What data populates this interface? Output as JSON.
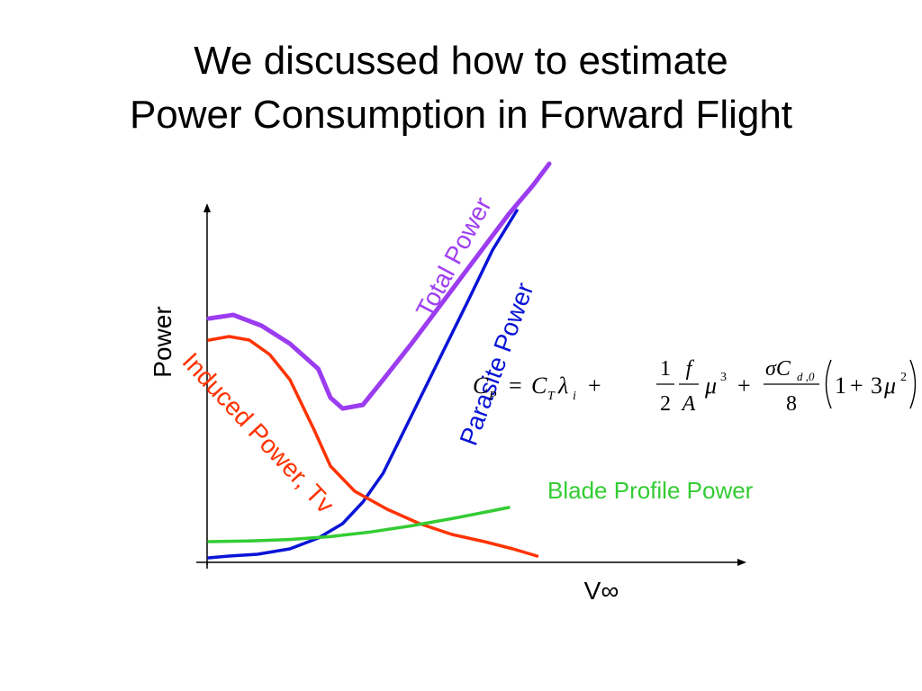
{
  "slide": {
    "title_line1": "We discussed how to estimate",
    "title_line2": "Power Consumption in Forward Flight"
  },
  "equation": {
    "lhs": "C",
    "lhs_sub": "P",
    "t1": "C",
    "t1_sub": "T",
    "lambda": "λ",
    "lambda_sub": "i",
    "frac1_num": "1",
    "frac1_den": "2",
    "frac2_num": "f",
    "frac2_den": "A",
    "mu": "μ",
    "mu_exp": "3",
    "frac3_num_sigma": "σC",
    "frac3_num_sub": "d ,0",
    "frac3_den": "8",
    "paren_one": "1",
    "paren_three": "3",
    "paren_mu": "μ",
    "paren_exp": "2",
    "eq_sign": "=",
    "plus": "+"
  },
  "chart_data": {
    "type": "line",
    "xlabel": "V∞",
    "ylabel": "Power",
    "grid": false,
    "legend": "none",
    "note": "qualitative sketch, no numeric ticks",
    "series": [
      {
        "name": "Total Power",
        "color": "#9b3cf0",
        "x": [
          0,
          0.06,
          0.13,
          0.2,
          0.27,
          0.3,
          0.33,
          0.38,
          0.43,
          0.5,
          0.58,
          0.66,
          0.74,
          0.8,
          0.84
        ],
        "y": [
          0.67,
          0.68,
          0.65,
          0.6,
          0.53,
          0.45,
          0.42,
          0.43,
          0.5,
          0.6,
          0.72,
          0.84,
          0.96,
          1.04,
          1.1
        ]
      },
      {
        "name": "Parasite Power",
        "color": "#0a14d6",
        "x": [
          0,
          0.05,
          0.12,
          0.2,
          0.27,
          0.33,
          0.38,
          0.43,
          0.5,
          0.57,
          0.64,
          0.7,
          0.76
        ],
        "y": [
          0.005,
          0.01,
          0.015,
          0.03,
          0.06,
          0.1,
          0.16,
          0.24,
          0.4,
          0.56,
          0.72,
          0.86,
          0.97
        ]
      },
      {
        "name": "Induced Power, Tv",
        "color": "#ff3300",
        "x": [
          0,
          0.05,
          0.1,
          0.15,
          0.2,
          0.26,
          0.3,
          0.36,
          0.44,
          0.52,
          0.6,
          0.68,
          0.75,
          0.81
        ],
        "y": [
          0.61,
          0.62,
          0.61,
          0.57,
          0.5,
          0.36,
          0.26,
          0.19,
          0.14,
          0.1,
          0.07,
          0.05,
          0.03,
          0.01
        ]
      },
      {
        "name": "Blade Profile Power",
        "color": "#33cc33",
        "x": [
          0,
          0.1,
          0.2,
          0.3,
          0.4,
          0.5,
          0.6,
          0.7,
          0.74
        ],
        "y": [
          0.05,
          0.052,
          0.056,
          0.064,
          0.077,
          0.094,
          0.114,
          0.136,
          0.145
        ]
      }
    ]
  }
}
